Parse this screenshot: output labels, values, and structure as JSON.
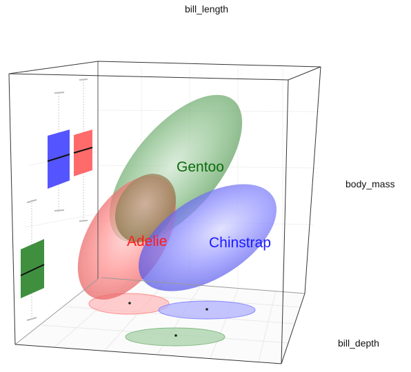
{
  "chart_data": {
    "type": "scatter3d-ellipsoids",
    "title": "",
    "axes": {
      "x": "bill_length",
      "y": "body_mass",
      "z": "bill_depth"
    },
    "groups": [
      {
        "name": "Adelie",
        "color": "#ff0000",
        "label_color": "#ff1a1a"
      },
      {
        "name": "Chinstrap",
        "color": "#0000ff",
        "label_color": "#1a1aff"
      },
      {
        "name": "Gentoo",
        "color": "#007f00",
        "label_color": "#0d6b0d"
      }
    ],
    "grid": true,
    "legend": "none"
  }
}
